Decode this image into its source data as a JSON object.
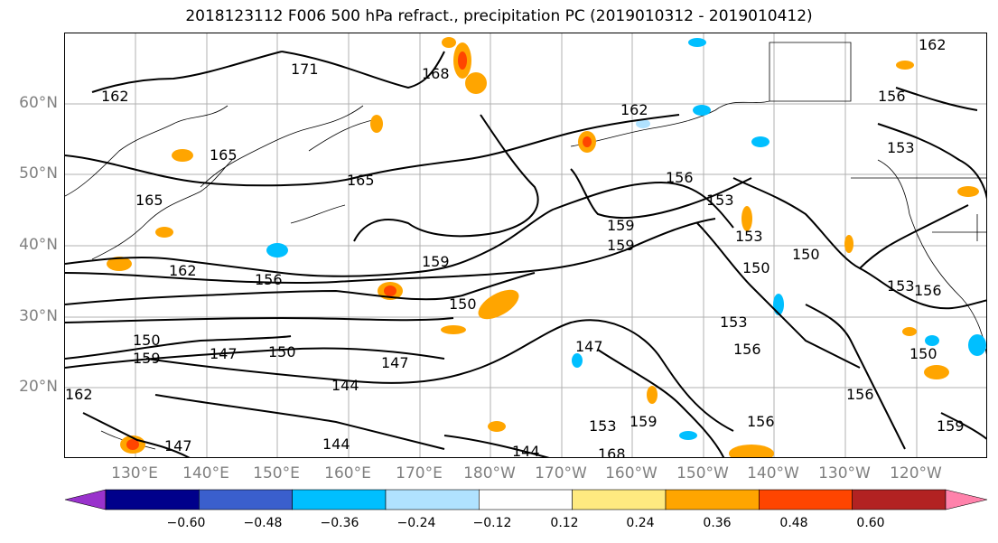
{
  "title": "2018123112 F006 500 hPa refract., precipitation PC (2019010312 - 2019010412)",
  "lat_labels": [
    "60°N",
    "50°N",
    "40°N",
    "30°N",
    "20°N"
  ],
  "lon_labels": [
    "130°E",
    "140°E",
    "150°E",
    "160°E",
    "170°E",
    "180°W",
    "170°W",
    "160°W",
    "150°W",
    "140°W",
    "130°W",
    "120°W"
  ],
  "contour_labels": [
    "162",
    "171",
    "168",
    "165",
    "162",
    "162",
    "165",
    "159",
    "156",
    "156",
    "159",
    "150",
    "153",
    "150",
    "156",
    "153",
    "153",
    "156",
    "153",
    "150",
    "150",
    "159",
    "156",
    "150",
    "147",
    "147",
    "144",
    "144",
    "159",
    "162",
    "150",
    "147",
    "153",
    "156",
    "156",
    "159",
    "147",
    "144",
    "153",
    "159",
    "168",
    "165",
    "162"
  ],
  "colorbar": {
    "ticks": [
      "−0.60",
      "−0.48",
      "−0.36",
      "−0.24",
      "−0.12",
      "0.12",
      "0.24",
      "0.36",
      "0.48",
      "0.60"
    ],
    "colors": [
      "#9932cc",
      "#00008b",
      "#3a5fcd",
      "#00bfff",
      "#b0e2ff",
      "#ffffff",
      "#ffea80",
      "#ffa500",
      "#ff4500",
      "#b22222",
      "#ff82ab"
    ]
  }
}
